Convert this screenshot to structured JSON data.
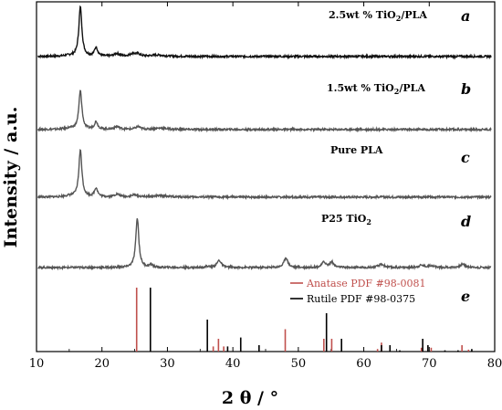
{
  "chart_data": {
    "type": "line",
    "xlabel": "2 θ / °",
    "ylabel": "Intensity / a.u.",
    "xlim": [
      10,
      80
    ],
    "xticks": [
      10,
      20,
      30,
      40,
      50,
      60,
      70,
      80
    ],
    "grid": false,
    "colors": {
      "line": "#1a1a1a",
      "anatase": "#c0504d",
      "rutile": "#000000"
    },
    "series": [
      {
        "letter": "a",
        "label": "2.5wt % TiO",
        "sub": "2",
        "label_suffix": "/PLA",
        "baseline": 0.7,
        "peaks": [
          [
            15.0,
            0.15,
            0.9
          ],
          [
            16.7,
            9.0,
            0.28
          ],
          [
            19.1,
            1.6,
            0.3
          ],
          [
            22.3,
            0.5,
            0.5
          ],
          [
            24.7,
            0.5,
            0.5
          ],
          [
            25.5,
            0.4,
            0.4
          ],
          [
            28.5,
            0.25,
            1.2
          ]
        ]
      },
      {
        "letter": "b",
        "label": "1.5wt % TiO",
        "sub": "2",
        "label_suffix": "/PLA",
        "baseline": 0.7,
        "peaks": [
          [
            15.0,
            0.2,
            0.9
          ],
          [
            16.7,
            7.0,
            0.28
          ],
          [
            19.1,
            1.4,
            0.3
          ],
          [
            22.3,
            0.5,
            0.5
          ],
          [
            25.5,
            0.5,
            0.4
          ],
          [
            29.0,
            0.25,
            1.2
          ]
        ]
      },
      {
        "letter": "c",
        "label": "Pure PLA",
        "sub": "",
        "label_suffix": "",
        "baseline": 0.7,
        "peaks": [
          [
            15.0,
            0.2,
            0.9
          ],
          [
            16.7,
            8.5,
            0.28
          ],
          [
            19.1,
            1.6,
            0.3
          ],
          [
            22.3,
            0.5,
            0.5
          ],
          [
            25.0,
            0.4,
            0.5
          ],
          [
            29.0,
            0.25,
            1.2
          ]
        ]
      },
      {
        "letter": "d",
        "label": "P25  TiO",
        "sub": "2",
        "label_suffix": "",
        "baseline": 0.5,
        "peaks": [
          [
            25.4,
            9.0,
            0.28
          ],
          [
            27.5,
            0.5,
            0.3
          ],
          [
            36.1,
            0.2,
            0.3
          ],
          [
            37.9,
            1.3,
            0.4
          ],
          [
            48.1,
            1.8,
            0.35
          ],
          [
            53.9,
            1.0,
            0.35
          ],
          [
            55.1,
            1.0,
            0.35
          ],
          [
            62.7,
            0.6,
            0.5
          ],
          [
            68.8,
            0.4,
            0.5
          ],
          [
            70.3,
            0.35,
            0.5
          ],
          [
            75.1,
            0.6,
            0.5
          ]
        ]
      }
    ],
    "reference": {
      "letter": "e",
      "anatase": {
        "name": "Anatase PDF #98-0081",
        "lines": [
          [
            25.3,
            100
          ],
          [
            37.0,
            8
          ],
          [
            37.8,
            20
          ],
          [
            38.6,
            8
          ],
          [
            48.0,
            35
          ],
          [
            53.9,
            20
          ],
          [
            55.1,
            20
          ],
          [
            62.1,
            4
          ],
          [
            62.7,
            14
          ],
          [
            68.8,
            6
          ],
          [
            70.3,
            6
          ],
          [
            75.0,
            10
          ],
          [
            76.0,
            3
          ]
        ]
      },
      "rutile": {
        "name": "Rutile PDF #98-0375",
        "lines": [
          [
            27.4,
            100
          ],
          [
            36.1,
            50
          ],
          [
            39.2,
            8
          ],
          [
            41.2,
            22
          ],
          [
            44.0,
            10
          ],
          [
            54.3,
            60
          ],
          [
            56.6,
            20
          ],
          [
            62.7,
            10
          ],
          [
            64.0,
            10
          ],
          [
            65.5,
            2
          ],
          [
            69.0,
            20
          ],
          [
            69.8,
            10
          ],
          [
            72.4,
            2
          ],
          [
            74.4,
            2
          ],
          [
            76.5,
            4
          ]
        ]
      }
    }
  }
}
